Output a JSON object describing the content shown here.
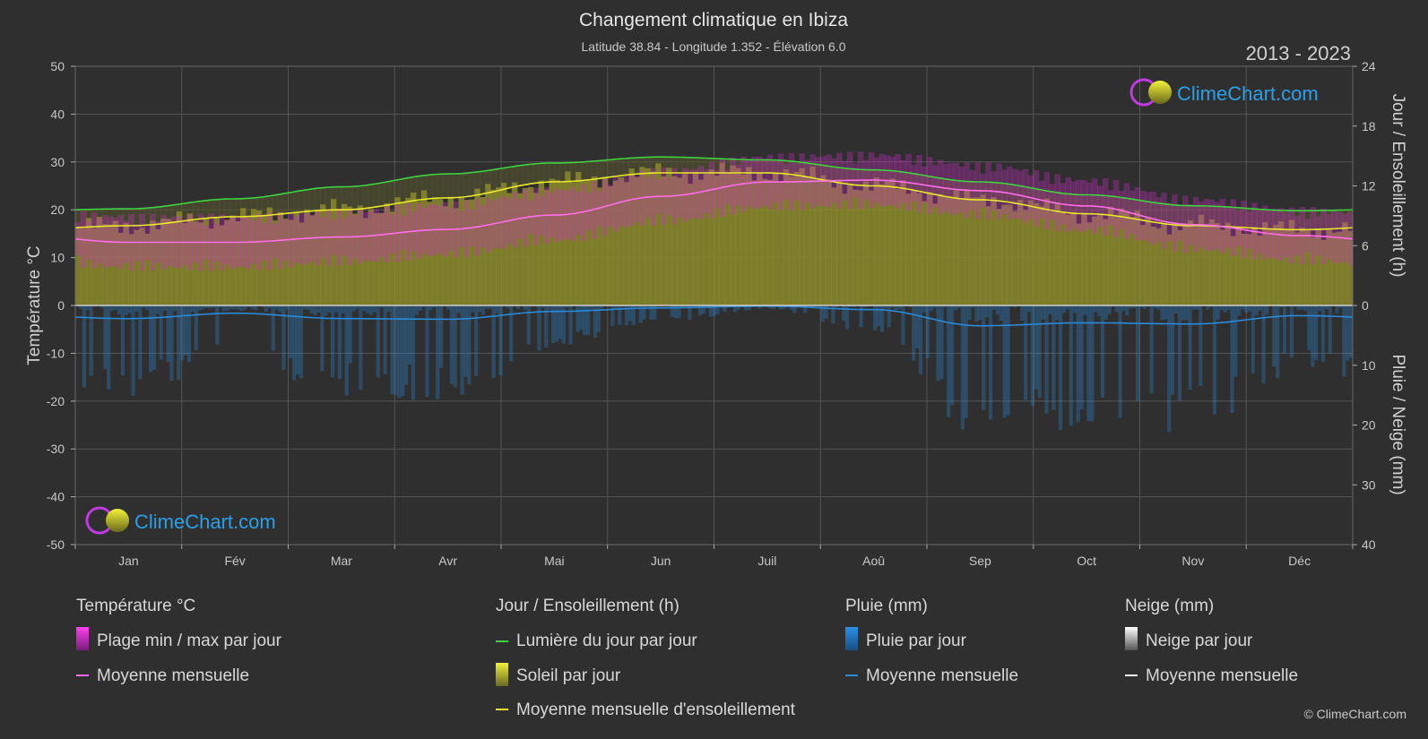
{
  "header": {
    "title": "Changement climatique en Ibiza",
    "subtitle": "Latitude 38.84 - Longitude 1.352 - Élévation 6.0",
    "year_range": "2013 - 2023"
  },
  "axes": {
    "left_label": "Température °C",
    "right_top_label": "Jour / Ensoleillement (h)",
    "right_bottom_label": "Pluie / Neige (mm)",
    "left_ticks": [
      "50",
      "40",
      "30",
      "20",
      "10",
      "0",
      "-10",
      "-20",
      "-30",
      "-40",
      "-50"
    ],
    "right_top_ticks": [
      "24",
      "18",
      "12",
      "6",
      "0"
    ],
    "right_bottom_ticks": [
      "10",
      "20",
      "30",
      "40"
    ]
  },
  "logo": {
    "text": "ClimeChart.com"
  },
  "copyright": "© ClimeChart.com",
  "legend": {
    "temperature": {
      "heading": "Température °C",
      "items": [
        {
          "label": "Plage min / max par jour"
        },
        {
          "label": "Moyenne mensuelle"
        }
      ]
    },
    "sun": {
      "heading": "Jour / Ensoleillement (h)",
      "items": [
        {
          "label": "Lumière du jour par jour"
        },
        {
          "label": "Soleil par jour"
        },
        {
          "label": "Moyenne mensuelle d'ensoleillement"
        }
      ]
    },
    "rain": {
      "heading": "Pluie (mm)",
      "items": [
        {
          "label": "Pluie par jour"
        },
        {
          "label": "Moyenne mensuelle"
        }
      ]
    },
    "snow": {
      "heading": "Neige (mm)",
      "items": [
        {
          "label": "Neige par jour"
        },
        {
          "label": "Moyenne mensuelle"
        }
      ]
    }
  },
  "colors": {
    "daylight": "#3ed23e",
    "sunshine_line": "#e8e82a",
    "sunshine_fill": "#8a8a2a",
    "temp_line": "#ff6ee8",
    "temp_range": "#d030c8",
    "rain": "#2a8ad8",
    "snow": "#ffffff",
    "grid": "#555555"
  },
  "chart_data": {
    "type": "line",
    "categories": [
      "Jan",
      "Fév",
      "Mar",
      "Avr",
      "Mai",
      "Jun",
      "Juil",
      "Aoû",
      "Sep",
      "Oct",
      "Nov",
      "Déc"
    ],
    "ylim_temperature": [
      -50,
      50
    ],
    "ylim_hours": [
      0,
      24
    ],
    "ylim_precip_mm": [
      0,
      40
    ],
    "series": [
      {
        "name": "Lumière du jour par jour",
        "unit": "h",
        "values": [
          9.7,
          10.7,
          11.9,
          13.2,
          14.3,
          14.9,
          14.6,
          13.6,
          12.4,
          11.1,
          10.0,
          9.5
        ]
      },
      {
        "name": "Moyenne mensuelle d'ensoleillement",
        "unit": "h",
        "values": [
          8.0,
          8.9,
          9.6,
          10.8,
          12.4,
          13.3,
          13.3,
          12.0,
          10.6,
          9.2,
          8.0,
          7.6
        ]
      },
      {
        "name": "Moyenne mensuelle",
        "unit": "°C",
        "values": [
          13.2,
          13.2,
          14.3,
          15.9,
          18.9,
          22.8,
          25.8,
          26.2,
          24.0,
          20.8,
          16.9,
          14.6
        ]
      },
      {
        "name": "Moyenne mensuelle",
        "unit": "mm",
        "values": [
          2.2,
          1.3,
          2.2,
          2.3,
          1.0,
          0.4,
          0.1,
          0.7,
          3.4,
          2.9,
          3.1,
          1.7
        ]
      }
    ]
  }
}
